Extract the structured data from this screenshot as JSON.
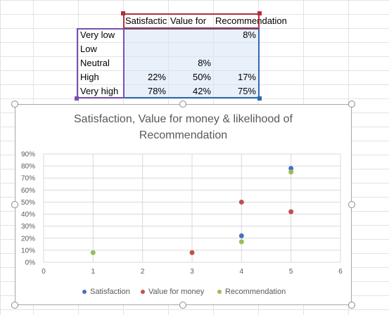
{
  "table": {
    "headers": [
      "Satisfactic",
      "Value for",
      "Recommendation"
    ],
    "rows": [
      {
        "label": "Very low",
        "satisfaction": "",
        "value": "",
        "recommendation": "8%"
      },
      {
        "label": "Low",
        "satisfaction": "",
        "value": "",
        "recommendation": ""
      },
      {
        "label": "Neutral",
        "satisfaction": "",
        "value": "8%",
        "recommendation": ""
      },
      {
        "label": "High",
        "satisfaction": "22%",
        "value": "50%",
        "recommendation": "17%"
      },
      {
        "label": "Very high",
        "satisfaction": "78%",
        "value": "42%",
        "recommendation": "75%"
      }
    ]
  },
  "colors": {
    "satisfaction": "#4472c4",
    "value": "#c0504d",
    "recommendation": "#9bbb59",
    "gridline": "#d9d9d9",
    "cell_grid": "#e3e3e3"
  },
  "chart_data": {
    "type": "scatter",
    "title": "Satisfaction, Value for money & likelihood of Recommendation",
    "title_lines": [
      "Satisfaction, Value for money & likelihood of",
      "Recommendation"
    ],
    "xlim": [
      0,
      6
    ],
    "ylim": [
      0,
      0.9
    ],
    "x_ticks": [
      "0",
      "1",
      "2",
      "3",
      "4",
      "5",
      "6"
    ],
    "y_ticks": [
      "0%",
      "10%",
      "20%",
      "30%",
      "40%",
      "50%",
      "60%",
      "70%",
      "80%",
      "90%"
    ],
    "grid": true,
    "legend_position": "bottom",
    "series": [
      {
        "name": "Satisfaction",
        "points": [
          [
            4,
            0.22
          ],
          [
            5,
            0.78
          ]
        ]
      },
      {
        "name": "Value for money",
        "points": [
          [
            3,
            0.08
          ],
          [
            4,
            0.5
          ],
          [
            5,
            0.42
          ]
        ]
      },
      {
        "name": "Recommendation",
        "points": [
          [
            1,
            0.08
          ],
          [
            4,
            0.17
          ],
          [
            5,
            0.75
          ]
        ]
      }
    ]
  }
}
